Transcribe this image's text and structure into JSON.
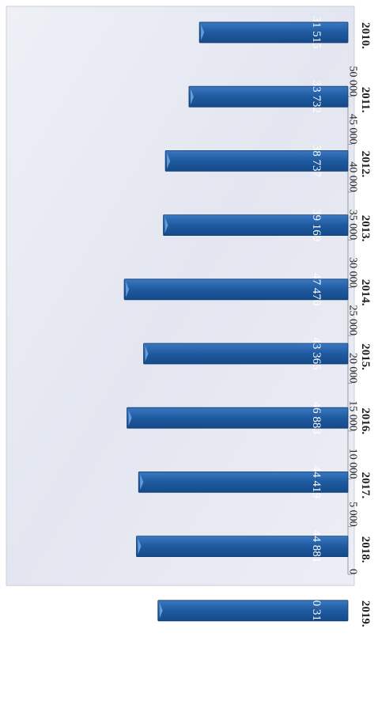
{
  "chart_data": {
    "type": "bar",
    "orientation": "horizontal",
    "categories": [
      "2010.",
      "2011.",
      "2012.",
      "2013.",
      "2014.",
      "2015.",
      "2016.",
      "2017.",
      "2018.",
      "2019."
    ],
    "values": [
      31515,
      33732,
      38737,
      39169,
      47470,
      43365,
      46883,
      44419,
      44881,
      40313
    ],
    "data_labels": [
      "31 515",
      "33 732",
      "38 737",
      "39 169",
      "47 470",
      "43 365",
      "46 883",
      "44 419",
      "44 881",
      "40 313"
    ],
    "xlim": [
      0,
      50000
    ],
    "ticks": [
      {
        "value": 0,
        "label": "0"
      },
      {
        "value": 5000,
        "label": "5 000"
      },
      {
        "value": 10000,
        "label": "10 000"
      },
      {
        "value": 15000,
        "label": "15 000"
      },
      {
        "value": 20000,
        "label": "20 000"
      },
      {
        "value": 25000,
        "label": "25 000"
      },
      {
        "value": 30000,
        "label": "30 000"
      },
      {
        "value": 35000,
        "label": "35 000"
      },
      {
        "value": 40000,
        "label": "40 000"
      },
      {
        "value": 45000,
        "label": "45 000"
      },
      {
        "value": 50000,
        "label": "50 000"
      }
    ],
    "rotation": "page rotated 90 degrees clockwise",
    "grid": false,
    "title": "",
    "xlabel": "",
    "ylabel": "",
    "colors": {
      "bar": "#1f5aa0",
      "bar_edge": "#0e3a73",
      "bar_label": "#ffffff",
      "background": "#e9ebf3",
      "axis": "#9a9a9a",
      "text": "#222222"
    }
  }
}
